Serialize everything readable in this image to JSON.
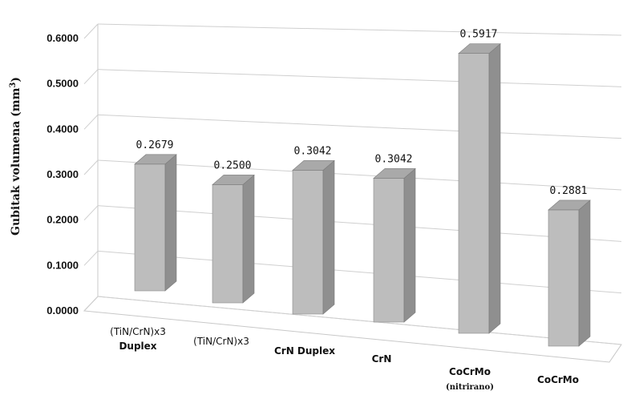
{
  "chart_data": {
    "type": "bar",
    "style": "3d-column",
    "ylabel_main": "Gubitak volumena (mm",
    "ylabel_sup": "3",
    "ylabel_close": ")",
    "ylim": [
      0,
      0.6
    ],
    "yticks": [
      "0.0000",
      "0.1000",
      "0.2000",
      "0.3000",
      "0.4000",
      "0.5000",
      "0.6000"
    ],
    "grid": true,
    "legend": "none",
    "bar_color": "#bdbdbd",
    "categories": [
      {
        "lines": [
          "(TiN/CrN)x3",
          "Duplex"
        ]
      },
      {
        "lines": [
          "(TiN/CrN)x3"
        ]
      },
      {
        "lines": [
          "CrN Duplex"
        ]
      },
      {
        "lines": [
          "CrN"
        ]
      },
      {
        "lines": [
          "CoCrMo",
          "(nitrirano)"
        ]
      },
      {
        "lines": [
          "CoCrMo"
        ]
      }
    ],
    "values": [
      0.2679,
      0.25,
      0.3042,
      0.3042,
      0.5917,
      0.2881
    ],
    "data_labels": [
      "0.2679",
      "0.2500",
      "0.3042",
      "0.3042",
      "0.5917",
      "0.2881"
    ]
  }
}
